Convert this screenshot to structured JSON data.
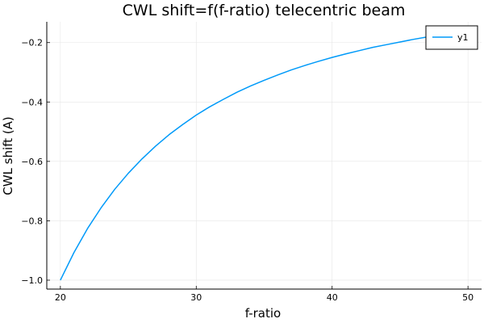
{
  "chart_data": {
    "type": "line",
    "title": "CWL shift=f(f-ratio) telecentric beam",
    "xlabel": "f-ratio",
    "ylabel": "CWL shift (A)",
    "xlim": [
      19,
      51
    ],
    "ylim": [
      -1.03,
      -0.13
    ],
    "xticks": [
      20,
      30,
      40,
      50
    ],
    "yticks": [
      -1.0,
      -0.8,
      -0.6,
      -0.4,
      -0.2
    ],
    "xtick_labels": [
      "20",
      "30",
      "40",
      "50"
    ],
    "ytick_labels": [
      "-1.0",
      "-0.8",
      "-0.6",
      "-0.4",
      "-0.2"
    ],
    "grid": true,
    "legend_position": "top-right",
    "series": [
      {
        "name": "y1",
        "color": "#009af9",
        "x": [
          20,
          21,
          22,
          23,
          24,
          25,
          26,
          27,
          28,
          29,
          30,
          31,
          32,
          33,
          34,
          35,
          36,
          37,
          38,
          39,
          40,
          41,
          42,
          43,
          44,
          45,
          46,
          47,
          48,
          49,
          50
        ],
        "y": [
          -1.0,
          -0.907,
          -0.826,
          -0.756,
          -0.694,
          -0.64,
          -0.592,
          -0.549,
          -0.51,
          -0.476,
          -0.444,
          -0.416,
          -0.391,
          -0.367,
          -0.346,
          -0.327,
          -0.309,
          -0.292,
          -0.277,
          -0.263,
          -0.25,
          -0.238,
          -0.227,
          -0.216,
          -0.207,
          -0.198,
          -0.189,
          -0.181,
          -0.174,
          -0.167,
          -0.16
        ]
      }
    ]
  }
}
